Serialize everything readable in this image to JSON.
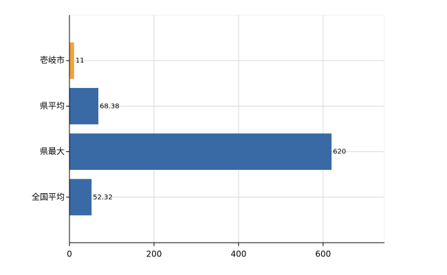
{
  "chart_data": {
    "type": "hbar",
    "categories": [
      "壱岐市",
      "県平均",
      "県最大",
      "全国平均"
    ],
    "values": [
      11,
      68.38,
      620,
      52.32
    ],
    "colors": [
      "#f0a23c",
      "#3a6aa5",
      "#3a6aa5",
      "#3a6aa5"
    ],
    "xlim": [
      0,
      745
    ],
    "xticks": [
      0,
      200,
      400,
      600
    ],
    "grid": true
  }
}
